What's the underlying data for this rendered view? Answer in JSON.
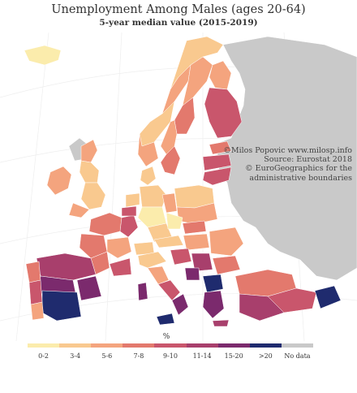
{
  "title": "Unemployment Among Males (ages 20-64)",
  "subtitle": "5-year median value (2015-2019)",
  "credits": [
    "©Milos Popovic www.milosp.info",
    "Source: Eurostat 2018",
    "© EuroGeographics for the",
    "administrative boundaries"
  ],
  "legend": {
    "unit": "%",
    "classes": [
      {
        "label": "0-2",
        "color": "#fbecac"
      },
      {
        "label": "3-4",
        "color": "#f9c98f"
      },
      {
        "label": "5-6",
        "color": "#f4a47e"
      },
      {
        "label": "7-8",
        "color": "#e3796d"
      },
      {
        "label": "9-10",
        "color": "#c9566c"
      },
      {
        "label": "11-14",
        "color": "#a83f6c"
      },
      {
        "label": "15-20",
        "color": "#7b2a6d"
      },
      {
        "label": ">20",
        "color": "#1f2b6e"
      },
      {
        "label": "No data",
        "color": "#c9c9c9"
      }
    ]
  },
  "colors": {
    "background": "#ffffff",
    "no_data_land": "#c9c9c9",
    "graticule": "#eeeeee",
    "borders": "#ffffff"
  }
}
